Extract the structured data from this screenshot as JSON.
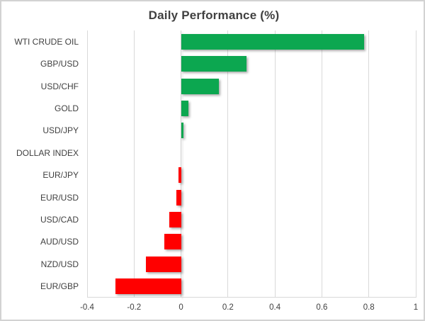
{
  "chart_title": "Daily Performance (%)",
  "chart_data": {
    "type": "bar",
    "orientation": "horizontal",
    "title": "Daily Performance (%)",
    "categories": [
      "WTI CRUDE OIL",
      "GBP/USD",
      "USD/CHF",
      "GOLD",
      "USD/JPY",
      "DOLLAR INDEX",
      "EUR/JPY",
      "EUR/USD",
      "USD/CAD",
      "AUD/USD",
      "NZD/USD",
      "EUR/GBP"
    ],
    "values": [
      0.78,
      0.28,
      0.16,
      0.03,
      0.01,
      0.0,
      -0.01,
      -0.02,
      -0.05,
      -0.07,
      -0.15,
      -0.28
    ],
    "xlim": [
      -0.4,
      1.0
    ],
    "xticks": [
      -0.4,
      -0.2,
      0,
      0.2,
      0.4,
      0.6,
      0.8,
      1
    ],
    "xtick_labels": [
      "-0.4",
      "-0.2",
      "0",
      "0.2",
      "0.4",
      "0.6",
      "0.8",
      "1"
    ],
    "grid": "vertical",
    "legend": "none",
    "positive_color": "#0ca750",
    "negative_color": "#ff0000",
    "gridline_color": "#d9d9d9",
    "text_color": "#404040",
    "border_color": "#d2d2d2",
    "background_color": "#ffffff"
  }
}
